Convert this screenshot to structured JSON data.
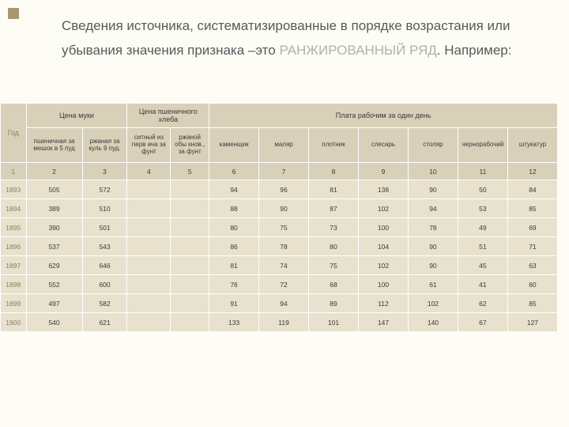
{
  "heading": {
    "part1": "Сведения источника, систематизированные в порядке возрастания или убывания значения признака –это ",
    "highlight": "РАНЖИРОВАННЫЙ РЯД",
    "part2": ". Например:"
  },
  "table": {
    "top_headers": {
      "god": "Год",
      "muka": "Цена муки",
      "hleb": "Цена пшеничного хлеба",
      "plata": "Плата рабочим за один день"
    },
    "sub_headers": {
      "h1": "пшеничная за мешок в 5 пуд",
      "h2": "ржаная за куль 9 пуд.",
      "h3": "ситный из перв ача за фунт",
      "h4": "ржаной обы кнов., за фунт",
      "h5": "каменщик",
      "h6": "маляр",
      "h7": "плотник",
      "h8": "слесарь",
      "h9": "столяр",
      "h10": "чернорабочий",
      "h11": "штукатур"
    },
    "col_nums": [
      "1",
      "2",
      "3",
      "4",
      "5",
      "6",
      "7",
      "8",
      "9",
      "10",
      "11",
      "12"
    ],
    "rows": [
      {
        "year": "1893",
        "cells": [
          "505",
          "572",
          "",
          "",
          "94",
          "96",
          "81",
          "138",
          "90",
          "50",
          "84"
        ]
      },
      {
        "year": "1894",
        "cells": [
          "389",
          "510",
          "",
          "",
          "88",
          "90",
          "87",
          "102",
          "94",
          "53",
          "85"
        ]
      },
      {
        "year": "1895",
        "cells": [
          "390",
          "501",
          "",
          "",
          "80",
          "75",
          "73",
          "100",
          "78",
          "49",
          "69"
        ]
      },
      {
        "year": "1896",
        "cells": [
          "537",
          "543",
          "",
          "",
          "86",
          "78",
          "80",
          "104",
          "90",
          "51",
          "71"
        ]
      },
      {
        "year": "1897",
        "cells": [
          "629",
          "646",
          "",
          "",
          "81",
          "74",
          "75",
          "102",
          "90",
          "45",
          "63"
        ]
      },
      {
        "year": "1898",
        "cells": [
          "552",
          "600",
          "",
          "",
          "76",
          "72",
          "68",
          "100",
          "61",
          "41",
          "60"
        ]
      },
      {
        "year": "1899",
        "cells": [
          "497",
          "582",
          "",
          "",
          "91",
          "94",
          "89",
          "112",
          "102",
          "62",
          "85"
        ]
      },
      {
        "year": "1900",
        "cells": [
          "540",
          "621",
          "",
          "",
          "133",
          "119",
          "101",
          "147",
          "140",
          "67",
          "127"
        ]
      }
    ]
  },
  "colors": {
    "page_bg": "#fdfdf6",
    "corner": "#a89870",
    "text": "#595959",
    "highlight": "#b0b0b0",
    "header_bg": "#d8d0b8",
    "left_bg": "#a59a76",
    "data_bg": "#e7e1cd",
    "border": "#ffffff"
  }
}
